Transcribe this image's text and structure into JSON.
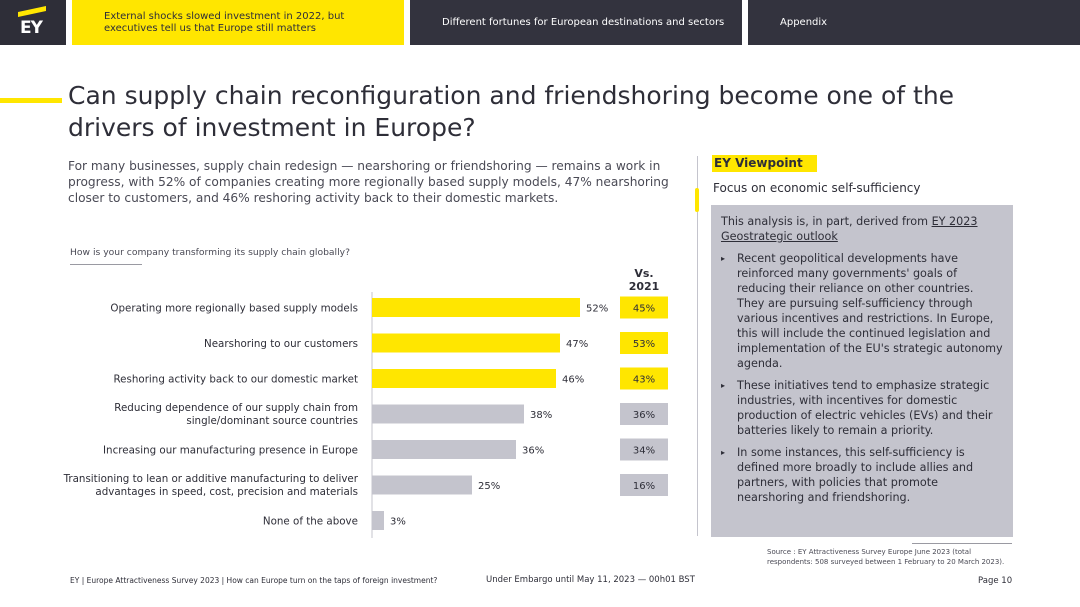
{
  "nav": {
    "logo_text": "EY",
    "tabs": [
      {
        "label": "External shocks slowed investment in 2022, but executives tell us that Europe still matters",
        "active": true
      },
      {
        "label": "Different fortunes for European destinations and sectors",
        "active": false
      },
      {
        "label": "Appendix",
        "active": false
      }
    ]
  },
  "title": "Can supply chain reconfiguration and friendshoring become one of the drivers of investment in Europe?",
  "intro": "For many businesses, supply chain redesign — nearshoring or friendshoring — remains a work in progress, with 52% of companies creating more regionally based supply models, 47% nearshoring closer to customers, and 46% reshoring activity back to their domestic markets.",
  "chart": {
    "question": "How is your company transforming its supply chain globally?",
    "vs_label": "Vs. 2021"
  },
  "chart_data": {
    "type": "bar",
    "orientation": "horizontal",
    "categories": [
      [
        "Operating more regionally based supply models"
      ],
      [
        "Nearshoring to our customers"
      ],
      [
        "Reshoring activity back to our domestic market"
      ],
      [
        "Reducing dependence of our supply chain from",
        "single/dominant source countries"
      ],
      [
        "Increasing our manufacturing presence in Europe"
      ],
      [
        "Transitioning to lean or additive manufacturing to deliver",
        "advantages in speed, cost, precision and materials"
      ],
      [
        "None of the above"
      ]
    ],
    "series": [
      {
        "values": [
          52,
          47,
          46,
          38,
          36,
          25,
          3
        ],
        "labels": [
          "52%",
          "47%",
          "46%",
          "38%",
          "36%",
          "25%",
          "3%"
        ]
      }
    ],
    "comparison_2021": {
      "values": [
        45,
        53,
        43,
        36,
        34,
        16,
        null
      ],
      "labels": [
        "45%",
        "53%",
        "43%",
        "36%",
        "34%",
        "16%",
        ""
      ]
    },
    "highlight_count": 3,
    "colors": {
      "highlight": "#ffe600",
      "normal": "#c4c4cd",
      "axis": "#c4c4cd"
    },
    "xlim": [
      0,
      100
    ]
  },
  "viewpoint": {
    "label": "EY Viewpoint",
    "subtitle": "Focus on economic self-sufficiency",
    "derived_prefix": "This analysis is, in part, derived from ",
    "derived_link": "EY 2023 Geostrategic outlook",
    "bullets": [
      "Recent geopolitical developments have reinforced many governments' goals of reducing their reliance on other countries. They are pursuing self-sufficiency through various incentives and restrictions. In Europe, this will include the continued legislation and implementation of the EU's strategic autonomy agenda.",
      "These initiatives tend to emphasize strategic industries, with incentives for domestic production of electric vehicles (EVs) and their batteries likely to remain a priority.",
      "In some instances, this self-sufficiency is defined more broadly to include allies and partners, with policies that promote nearshoring and friendshoring."
    ]
  },
  "source": "Source : EY Attractiveness Survey Europe June 2023 (total respondents: 508 surveyed between 1 February to 20 March 2023).",
  "footer": {
    "left": "EY | Europe Attractiveness Survey 2023 | How can Europe turn on the taps of foreign investment?",
    "mid": "Under Embargo until May 11, 2023 — 00h01 BST",
    "page": "Page 10"
  },
  "colors": {
    "brand_yellow": "#ffe600",
    "brand_dark": "#2e2e38",
    "panel_grey": "#c4c4cd"
  }
}
